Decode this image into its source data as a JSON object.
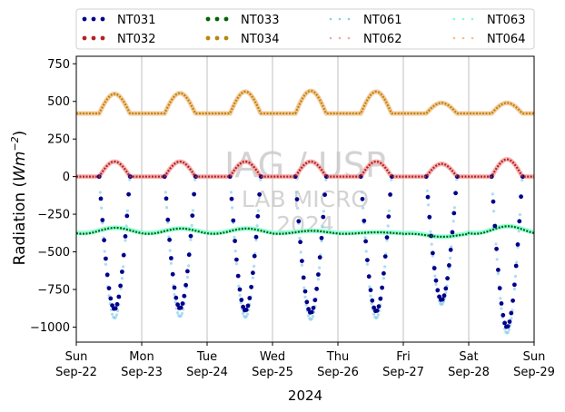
{
  "chart_data": {
    "type": "scatter",
    "xlabel": "2024",
    "ylabel_main": "Radiation (",
    "ylabel_unit": "Wm",
    "ylabel_exp": "−2",
    "ylabel_close": ")",
    "ylim": [
      -1100,
      800
    ],
    "yticks": [
      750,
      500,
      250,
      0,
      -250,
      -500,
      -750,
      -1000
    ],
    "ytick_labels": [
      "750",
      "500",
      "250",
      "0",
      "−250",
      "−500",
      "−750",
      "−1000"
    ],
    "xlim": [
      "2024-09-22",
      "2024-09-29"
    ],
    "xticks": [
      {
        "day": "Sun",
        "date": "Sep-22"
      },
      {
        "day": "Mon",
        "date": "Sep-23"
      },
      {
        "day": "Tue",
        "date": "Sep-24"
      },
      {
        "day": "Wed",
        "date": "Sep-25"
      },
      {
        "day": "Thu",
        "date": "Sep-26"
      },
      {
        "day": "Fri",
        "date": "Sep-27"
      },
      {
        "day": "Sat",
        "date": "Sep-28"
      },
      {
        "day": "Sun",
        "date": "Sep-29"
      }
    ],
    "grid": "x",
    "legend_position": "top",
    "watermark": [
      "IAG / USP",
      "LAB MICRO",
      "2024"
    ],
    "series": [
      {
        "name": "NT031",
        "color": "#00008b",
        "marker": "dot",
        "baseline": 0,
        "daily_peak": [
          -880,
          -875,
          -890,
          -905,
          -895,
          -820,
          -1000
        ],
        "kind": "trough"
      },
      {
        "name": "NT032",
        "color": "#b22222",
        "marker": "dot",
        "baseline": 0,
        "daily_peak": [
          100,
          100,
          100,
          100,
          100,
          85,
          115
        ],
        "kind": "peak"
      },
      {
        "name": "NT033",
        "color": "#006400",
        "marker": "dot",
        "baseline": -380,
        "daily_peak": [
          -340,
          -345,
          -345,
          -360,
          -370,
          -400,
          -330
        ],
        "kind": "wave"
      },
      {
        "name": "NT034",
        "color": "#b8860b",
        "marker": "dot",
        "baseline": 420,
        "daily_peak": [
          550,
          555,
          565,
          570,
          565,
          490,
          490
        ],
        "kind": "peak"
      },
      {
        "name": "NT061",
        "color": "#87ceeb",
        "marker": "faint",
        "baseline": 0,
        "daily_peak": [
          -940,
          -930,
          -935,
          -950,
          -940,
          -850,
          -1040
        ],
        "kind": "trough"
      },
      {
        "name": "NT062",
        "color": "#f4a6a6",
        "marker": "faint",
        "baseline": 0,
        "daily_peak": [
          100,
          100,
          100,
          100,
          100,
          85,
          115
        ],
        "kind": "peak"
      },
      {
        "name": "NT063",
        "color": "#7fffd4",
        "marker": "faint",
        "baseline": -375,
        "daily_peak": [
          -340,
          -345,
          -345,
          -360,
          -370,
          -400,
          -330
        ],
        "kind": "wave"
      },
      {
        "name": "NT064",
        "color": "#f5c08a",
        "marker": "faint",
        "baseline": 420,
        "daily_peak": [
          550,
          555,
          565,
          570,
          565,
          490,
          490
        ],
        "kind": "peak"
      }
    ]
  }
}
